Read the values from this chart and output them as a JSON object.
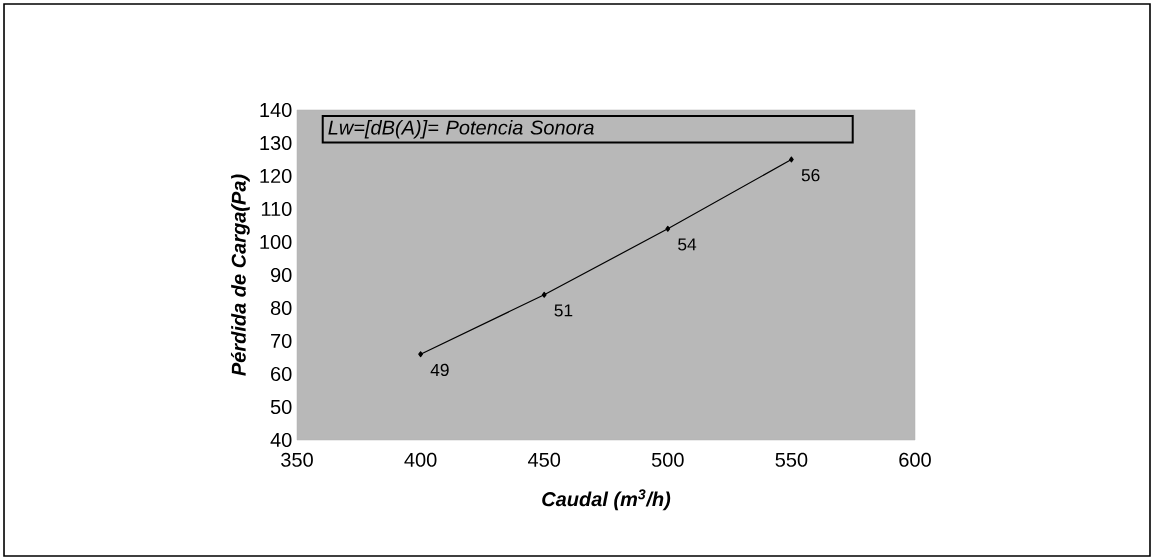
{
  "chart_data": {
    "type": "line",
    "xlabel": "Caudal (m$^{3}$/h)",
    "ylabel": "Pérdida de Carga(Pa)",
    "x": [
      400,
      450,
      500,
      550
    ],
    "series": [
      {
        "color": "#000000",
        "values": [
          66,
          84,
          104,
          125
        ]
      }
    ],
    "xlim": [
      350,
      600
    ],
    "xticks": [
      350,
      400,
      450,
      500,
      550,
      600
    ],
    "ylim": [
      40,
      140
    ],
    "yticks": [
      40,
      50,
      60,
      70,
      80,
      90,
      100,
      110,
      120,
      130,
      140
    ],
    "marker": "diamond",
    "line_style": "solid",
    "grid": false,
    "annotations": [
      "Lw=[dB(A)]= Potencia Sonora",
      {
        "text": "49",
        "x": 400,
        "y": 66
      },
      {
        "text": "51",
        "x": 450,
        "y": 84
      },
      {
        "text": "54",
        "x": 500,
        "y": 104
      },
      {
        "text": "56",
        "x": 550,
        "y": 125
      }
    ]
  }
}
